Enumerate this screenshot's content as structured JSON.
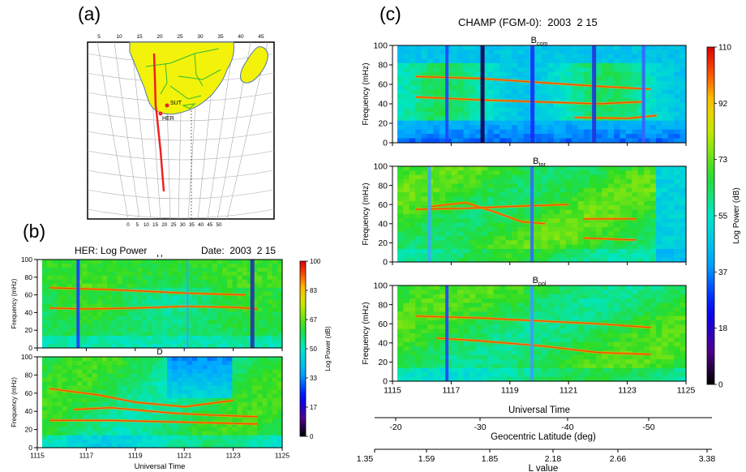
{
  "panel_labels": {
    "a": "(a)",
    "b": "(b)",
    "c": "(c)"
  },
  "map": {
    "top_ticks": [
      "5",
      "10",
      "15",
      "20",
      "25",
      "30",
      "35",
      "40",
      "45"
    ],
    "bottom_ticks": [
      "0",
      "5",
      "10",
      "15",
      "20",
      "25",
      "30",
      "35",
      "40",
      "45",
      "50"
    ],
    "stations": [
      {
        "name": "SUT"
      },
      {
        "name": "HER"
      }
    ],
    "colors": {
      "land": "#f2f20a",
      "border": "#33bb33",
      "track": "#ee2222",
      "grid": "#aaaaaa"
    }
  },
  "chart_data": [
    {
      "type": "heatmap",
      "title": "HER: Log Power",
      "date_label": "Date:  2003  2 15",
      "panels": [
        {
          "name": "H"
        },
        {
          "name": "D"
        }
      ],
      "ylabel": "Frequency (mHz)",
      "xlabel": "Universal Time",
      "x_ticks": [
        "1115",
        "1117",
        "1119",
        "1121",
        "1123",
        "1125"
      ],
      "y_ticks": [
        "0",
        "20",
        "40",
        "60",
        "80",
        "100"
      ],
      "xlim": [
        1115,
        1125
      ],
      "ylim": [
        0,
        100
      ],
      "colorbar": {
        "label": "Log Power (dB)",
        "ticks": [
          "100",
          "83",
          "67",
          "50",
          "33",
          "17",
          "0"
        ],
        "range": [
          0,
          100
        ]
      },
      "features": {
        "H": [
          {
            "type": "ridge",
            "points": [
              [
                1115.5,
                45
              ],
              [
                1117,
                44
              ],
              [
                1119,
                45
              ],
              [
                1121,
                47
              ],
              [
                1123,
                46
              ],
              [
                1124,
                44
              ]
            ]
          },
          {
            "type": "ridge",
            "points": [
              [
                1115.5,
                68
              ],
              [
                1118,
                66
              ],
              [
                1121,
                62
              ],
              [
                1123.5,
                60
              ]
            ]
          }
        ],
        "D": [
          {
            "type": "ridge",
            "points": [
              [
                1115.5,
                65
              ],
              [
                1117.5,
                58
              ],
              [
                1119,
                50
              ],
              [
                1121,
                45
              ],
              [
                1123,
                52
              ]
            ]
          },
          {
            "type": "ridge",
            "points": [
              [
                1116.5,
                42
              ],
              [
                1118,
                44
              ],
              [
                1120.5,
                38
              ],
              [
                1122,
                36
              ],
              [
                1124,
                34
              ]
            ]
          },
          {
            "type": "ridge",
            "points": [
              [
                1115.5,
                30
              ],
              [
                1118,
                30
              ],
              [
                1121,
                28
              ],
              [
                1124,
                26
              ]
            ]
          }
        ]
      }
    },
    {
      "type": "heatmap",
      "title": "CHAMP (FGM-0):  2003  2 15",
      "panels": [
        {
          "name": "B",
          "sub": "com"
        },
        {
          "name": "B",
          "sub": "tor"
        },
        {
          "name": "B",
          "sub": "pol"
        }
      ],
      "ylabel": "Frequency (mHz)",
      "xlabel": "Universal Time",
      "x_ticks": [
        "1115",
        "1117",
        "1119",
        "1121",
        "1123",
        "1125"
      ],
      "y_ticks": [
        "0",
        "20",
        "40",
        "60",
        "80",
        "100"
      ],
      "xlim": [
        1115,
        1125
      ],
      "ylim": [
        0,
        100
      ],
      "latitude_axis": {
        "label": "Geocentric Latitude (deg)",
        "ticks": [
          "-20",
          "-30",
          "-40",
          "-50"
        ]
      },
      "lvalue_axis": {
        "label": "L value",
        "ticks": [
          "1.35",
          "1.59",
          "1.85",
          "2.18",
          "2.66",
          "3.38"
        ]
      },
      "colorbar": {
        "label": "Log Power (dB)",
        "ticks": [
          "110",
          "92",
          "73",
          "55",
          "37",
          "18",
          "0"
        ],
        "range": [
          0,
          110
        ]
      },
      "features": {
        "com": [
          {
            "type": "ridge",
            "points": [
              [
                1115.8,
                68
              ],
              [
                1118,
                66
              ],
              [
                1120,
                62
              ],
              [
                1122,
                58
              ],
              [
                1123.8,
                55
              ]
            ]
          },
          {
            "type": "ridge",
            "points": [
              [
                1115.8,
                47
              ],
              [
                1118,
                44
              ],
              [
                1120,
                42
              ],
              [
                1122,
                40
              ],
              [
                1123.5,
                42
              ]
            ]
          },
          {
            "type": "ridge",
            "points": [
              [
                1121.2,
                26
              ],
              [
                1123,
                25
              ],
              [
                1124,
                28
              ]
            ]
          }
        ],
        "tor": [
          {
            "type": "ridge",
            "points": [
              [
                1116.3,
                58
              ],
              [
                1117.5,
                62
              ],
              [
                1118.5,
                52
              ],
              [
                1119.4,
                42
              ],
              [
                1120.2,
                40
              ]
            ]
          },
          {
            "type": "ridge",
            "points": [
              [
                1115.8,
                55
              ],
              [
                1117.5,
                56
              ],
              [
                1119,
                58
              ],
              [
                1121,
                60
              ]
            ]
          },
          {
            "type": "ridge",
            "points": [
              [
                1121.5,
                45
              ],
              [
                1123.3,
                45
              ]
            ]
          },
          {
            "type": "ridge",
            "points": [
              [
                1121.5,
                25
              ],
              [
                1123.3,
                23
              ]
            ]
          }
        ],
        "pol": [
          {
            "type": "ridge",
            "points": [
              [
                1115.8,
                68
              ],
              [
                1118,
                66
              ],
              [
                1120,
                63
              ],
              [
                1122,
                60
              ],
              [
                1123.8,
                56
              ]
            ]
          },
          {
            "type": "ridge",
            "points": [
              [
                1116.5,
                45
              ],
              [
                1118,
                42
              ],
              [
                1120,
                37
              ],
              [
                1122,
                30
              ],
              [
                1123.8,
                28
              ]
            ]
          }
        ]
      }
    }
  ]
}
